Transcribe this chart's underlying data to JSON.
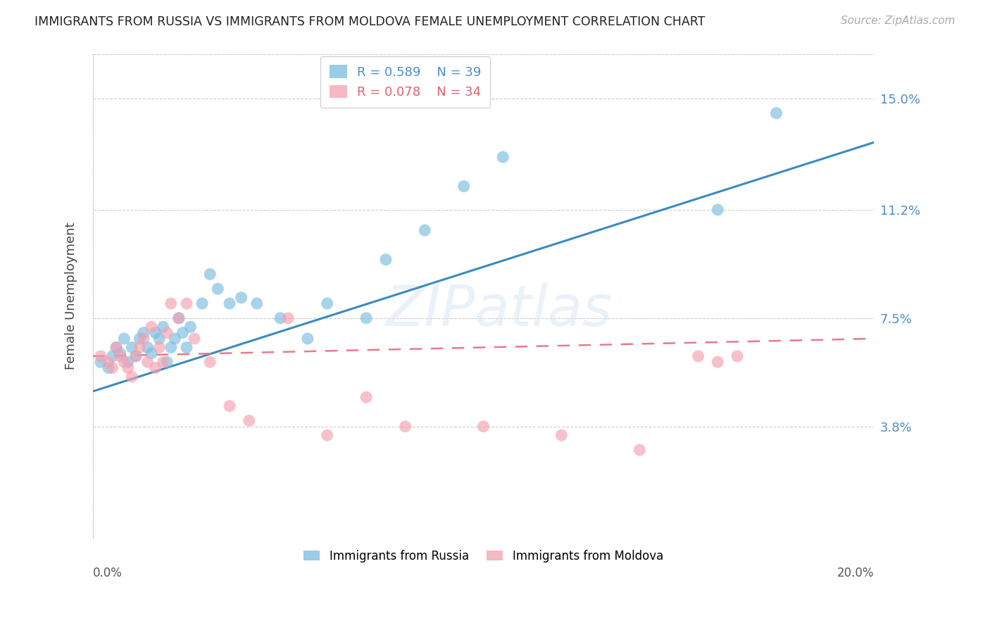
{
  "title": "IMMIGRANTS FROM RUSSIA VS IMMIGRANTS FROM MOLDOVA FEMALE UNEMPLOYMENT CORRELATION CHART",
  "source": "Source: ZipAtlas.com",
  "ylabel": "Female Unemployment",
  "yticks": [
    0.038,
    0.075,
    0.112,
    0.15
  ],
  "ytick_labels": [
    "3.8%",
    "7.5%",
    "11.2%",
    "15.0%"
  ],
  "xlim": [
    0.0,
    0.2
  ],
  "ylim": [
    0.0,
    0.165
  ],
  "russia_R": 0.589,
  "russia_N": 39,
  "moldova_R": 0.078,
  "moldova_N": 34,
  "russia_color": "#7abce0",
  "moldova_color": "#f4a0b0",
  "russia_line_color": "#3a8bbf",
  "moldova_line_color": "#e87a8a",
  "watermark": "ZIPatlas",
  "background_color": "#ffffff",
  "russia_x": [
    0.002,
    0.004,
    0.005,
    0.006,
    0.007,
    0.008,
    0.009,
    0.01,
    0.011,
    0.012,
    0.013,
    0.014,
    0.015,
    0.016,
    0.017,
    0.018,
    0.019,
    0.02,
    0.021,
    0.022,
    0.023,
    0.024,
    0.025,
    0.028,
    0.03,
    0.032,
    0.035,
    0.038,
    0.042,
    0.048,
    0.055,
    0.06,
    0.07,
    0.075,
    0.085,
    0.095,
    0.105,
    0.16,
    0.175
  ],
  "russia_y": [
    0.06,
    0.058,
    0.062,
    0.065,
    0.063,
    0.068,
    0.06,
    0.065,
    0.062,
    0.068,
    0.07,
    0.065,
    0.063,
    0.07,
    0.068,
    0.072,
    0.06,
    0.065,
    0.068,
    0.075,
    0.07,
    0.065,
    0.072,
    0.08,
    0.09,
    0.085,
    0.08,
    0.082,
    0.08,
    0.075,
    0.068,
    0.08,
    0.075,
    0.095,
    0.105,
    0.12,
    0.13,
    0.112,
    0.145
  ],
  "moldova_x": [
    0.002,
    0.004,
    0.005,
    0.006,
    0.007,
    0.008,
    0.009,
    0.01,
    0.011,
    0.012,
    0.013,
    0.014,
    0.015,
    0.016,
    0.017,
    0.018,
    0.019,
    0.02,
    0.022,
    0.024,
    0.026,
    0.03,
    0.035,
    0.04,
    0.05,
    0.06,
    0.07,
    0.08,
    0.1,
    0.12,
    0.14,
    0.155,
    0.16,
    0.165
  ],
  "moldova_y": [
    0.062,
    0.06,
    0.058,
    0.065,
    0.062,
    0.06,
    0.058,
    0.055,
    0.062,
    0.065,
    0.068,
    0.06,
    0.072,
    0.058,
    0.065,
    0.06,
    0.07,
    0.08,
    0.075,
    0.08,
    0.068,
    0.06,
    0.045,
    0.04,
    0.075,
    0.035,
    0.048,
    0.038,
    0.038,
    0.035,
    0.03,
    0.062,
    0.06,
    0.062
  ],
  "russia_line_x": [
    0.0,
    0.2
  ],
  "russia_line_y": [
    0.05,
    0.135
  ],
  "moldova_line_x": [
    0.0,
    0.2
  ],
  "moldova_line_y": [
    0.062,
    0.068
  ]
}
